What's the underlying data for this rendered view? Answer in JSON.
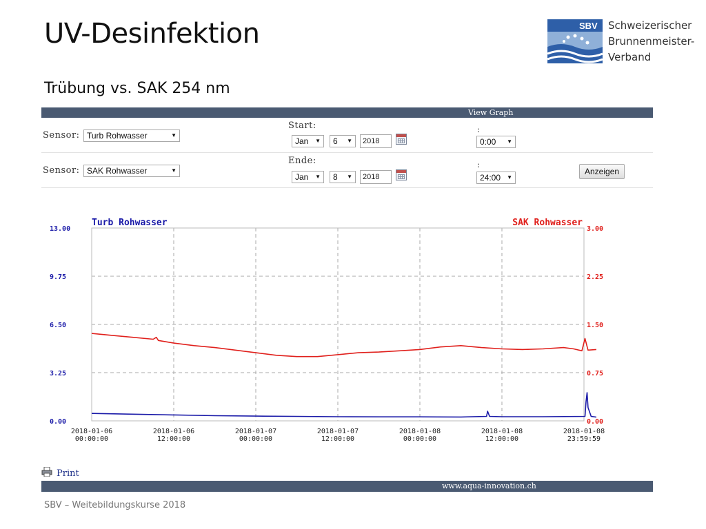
{
  "slide": {
    "title": "UV-Desinfektion",
    "subtitle": "Trübung vs. SAK 254 nm",
    "footer": "SBV – Weitebildungskurse 2018"
  },
  "logo": {
    "mark_text": "SBV",
    "line1": "Schweizerischer",
    "line2": "Brunnenmeister-",
    "line3": "Verband",
    "colors": {
      "blue": "#2e5fa8",
      "light_blue": "#8fb0d8"
    }
  },
  "panel": {
    "header": "View Graph",
    "footer_url": "www.aqua-innovation.ch",
    "bar_color": "#4a5a72"
  },
  "controls": {
    "row1": {
      "sensor_label": "Sensor:",
      "sensor_value": "Turb Rohwasser",
      "date_label": "Start:",
      "month": "Jan",
      "day": "6",
      "year": "2018",
      "time_label": ":",
      "time": "0:00"
    },
    "row2": {
      "sensor_label": "Sensor:",
      "sensor_value": "SAK Rohwasser",
      "date_label": "Ende:",
      "month": "Jan",
      "day": "8",
      "year": "2018",
      "time_label": ":",
      "time": "24:00",
      "button": "Anzeigen"
    },
    "icons": {
      "calendar": "calendar-icon",
      "dropdown": "dropdown-arrow-icon"
    }
  },
  "print_label": "Print",
  "chart_data": {
    "type": "line",
    "title": "",
    "x_ticks": [
      [
        "2018-01-06",
        "00:00:00"
      ],
      [
        "2018-01-06",
        "12:00:00"
      ],
      [
        "2018-01-07",
        "00:00:00"
      ],
      [
        "2018-01-07",
        "12:00:00"
      ],
      [
        "2018-01-08",
        "00:00:00"
      ],
      [
        "2018-01-08",
        "12:00:00"
      ],
      [
        "2018-01-08",
        "23:59:59"
      ]
    ],
    "x_range_hours": [
      0,
      48
    ],
    "left_axis": {
      "label": "Turb Rohwasser",
      "ticks": [
        "13.00",
        "9.75",
        "6.50",
        "3.25",
        "0.00"
      ],
      "range": [
        0,
        13
      ],
      "color": "#1a1aa8"
    },
    "right_axis": {
      "label": "SAK Rohwasser",
      "ticks": [
        "3.00",
        "2.25",
        "1.50",
        "0.75",
        "0.00"
      ],
      "range": [
        0,
        3
      ],
      "color": "#e0201c"
    },
    "grid": true,
    "series": [
      {
        "name": "Turb Rohwasser",
        "axis": "left",
        "color": "#1a1aa8",
        "x": [
          0,
          4,
          8,
          12,
          16,
          20,
          24,
          28,
          32,
          36,
          38.5,
          38.6,
          38.8,
          40,
          44,
          48.1,
          48.2,
          48.3,
          48.4,
          48.7,
          49.2
        ],
        "y": [
          0.5,
          0.45,
          0.4,
          0.35,
          0.32,
          0.3,
          0.28,
          0.27,
          0.27,
          0.26,
          0.3,
          0.65,
          0.3,
          0.28,
          0.28,
          0.3,
          1.3,
          1.9,
          0.9,
          0.3,
          0.25
        ]
      },
      {
        "name": "SAK Rohwasser",
        "axis": "right",
        "color": "#e0201c",
        "x": [
          0,
          2,
          4,
          6,
          6.3,
          6.5,
          8,
          10,
          12,
          14,
          16,
          18,
          20,
          22,
          24,
          26,
          28,
          30,
          32,
          34,
          36,
          38,
          40,
          42,
          44,
          46,
          47,
          47.8,
          48.1,
          48.4,
          49.2
        ],
        "y": [
          1.36,
          1.33,
          1.3,
          1.27,
          1.3,
          1.25,
          1.21,
          1.17,
          1.14,
          1.1,
          1.06,
          1.02,
          1.0,
          1.0,
          1.03,
          1.06,
          1.07,
          1.09,
          1.11,
          1.15,
          1.17,
          1.14,
          1.12,
          1.11,
          1.12,
          1.14,
          1.12,
          1.09,
          1.28,
          1.1,
          1.11
        ]
      }
    ]
  }
}
